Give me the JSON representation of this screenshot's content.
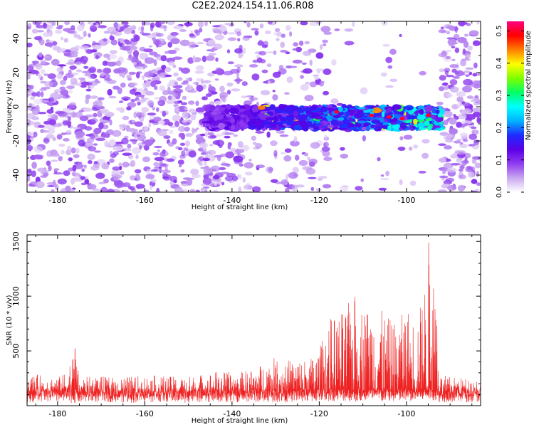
{
  "title": "C2E2.2024.154.11.06.R08",
  "chart_data": [
    {
      "type": "heatmap",
      "xlabel": "Height of straight line (km)",
      "ylabel": "Frequency (Hz)",
      "xlim": [
        -187,
        -83
      ],
      "ylim": [
        -50,
        50
      ],
      "x_ticks": [
        -180,
        -160,
        -140,
        -120,
        -100
      ],
      "y_ticks": [
        -40,
        -20,
        0,
        20,
        40
      ],
      "colorbar": {
        "label": "Normalized spectral amplitude",
        "range": [
          0,
          0.53
        ],
        "ticks": [
          0.0,
          0.1,
          0.2,
          0.3,
          0.4,
          0.5
        ],
        "colormap": [
          "#ffffff",
          "#c9a7f0",
          "#8f3cf0",
          "#5a00e6",
          "#1f2bff",
          "#00b4ff",
          "#00ffff",
          "#00ff66",
          "#7fff00",
          "#ffff00",
          "#ff8000",
          "#ff0000",
          "#ff0080"
        ]
      },
      "features": [
        {
          "description": "noise background",
          "x_range": [
            -187,
            -83
          ],
          "level": 0.08
        },
        {
          "description": "signal band",
          "x_range": [
            -146,
            -92
          ],
          "freq_range": [
            -13,
            0
          ],
          "peak": 0.5,
          "peak_x": -101
        }
      ]
    },
    {
      "type": "line",
      "xlabel": "Height of straight line (km)",
      "ylabel": "SNR (10 * v/v)",
      "xlim": [
        -187,
        -83
      ],
      "ylim": [
        0,
        1560
      ],
      "x_ticks": [
        -180,
        -160,
        -140,
        -120,
        -100
      ],
      "y_ticks": [
        500,
        1000,
        1500
      ],
      "series": [
        {
          "color": "#ee2222",
          "x": [
            -187,
            -183,
            -179,
            -176,
            -175,
            -171,
            -167,
            -163,
            -159,
            -155,
            -151,
            -147,
            -143,
            -139,
            -135,
            -131,
            -128,
            -125,
            -122,
            -120,
            -118,
            -116,
            -114,
            -112,
            -110,
            -108,
            -106,
            -104,
            -102,
            -100,
            -98,
            -96,
            -95,
            -94,
            -93,
            -92.5,
            -92,
            -90,
            -88,
            -86,
            -84,
            -83
          ],
          "peak": [
            290,
            280,
            270,
            520,
            260,
            270,
            260,
            270,
            280,
            270,
            260,
            290,
            320,
            300,
            340,
            440,
            420,
            430,
            440,
            520,
            800,
            830,
            880,
            1040,
            920,
            920,
            880,
            800,
            760,
            920,
            780,
            1030,
            1560,
            1310,
            1130,
            300,
            280,
            270,
            260,
            250,
            250,
            260
          ],
          "baseline_mean": 140,
          "trough": [
            30,
            30,
            25,
            20,
            25,
            30,
            30,
            25,
            30,
            30,
            25,
            30,
            30,
            30,
            30,
            30,
            30,
            30,
            30,
            40,
            40,
            40,
            40,
            30,
            40,
            40,
            30,
            40,
            30,
            40,
            40,
            50,
            60,
            50,
            40,
            30,
            30,
            30,
            30,
            30,
            30,
            30
          ]
        }
      ]
    }
  ]
}
